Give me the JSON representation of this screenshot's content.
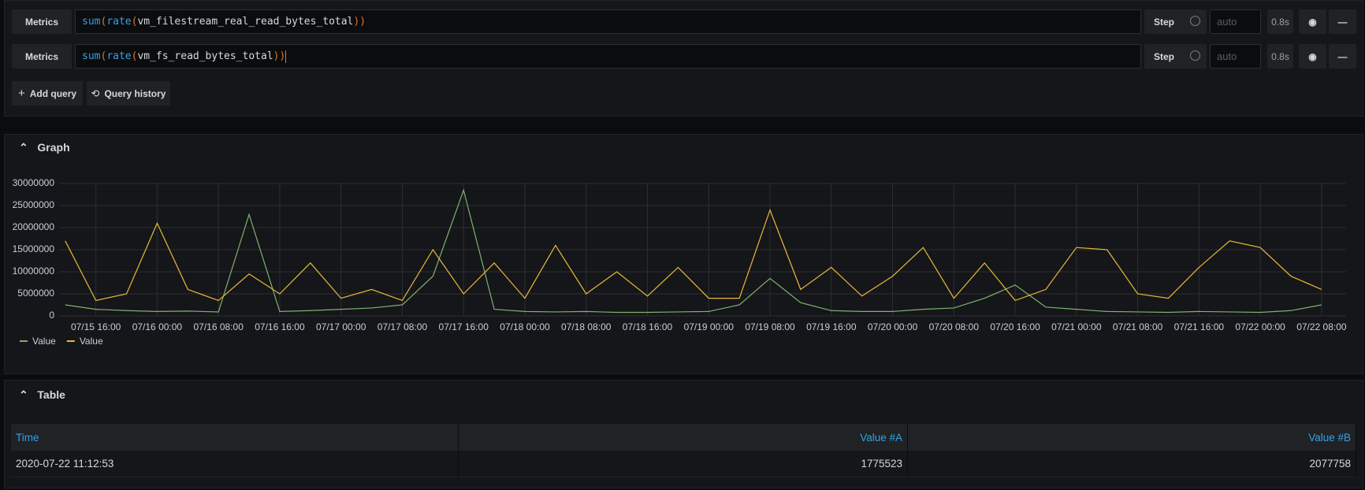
{
  "queries": [
    {
      "datasource": "Metrics",
      "expr": "sum(rate(vm_filestream_real_read_bytes_total))",
      "step": "Step",
      "step_placeholder": "auto",
      "duration": "0.8s"
    },
    {
      "datasource": "Metrics",
      "expr": "sum(rate(vm_fs_read_bytes_total))",
      "step": "Step",
      "step_placeholder": "auto",
      "duration": "0.8s"
    }
  ],
  "buttons": {
    "add_query": "Add query",
    "query_history": "Query history"
  },
  "chart_data": {
    "type": "line",
    "title": "Graph",
    "x": [
      "07/15 12:00",
      "07/15 16:00",
      "07/15 20:00",
      "07/16 00:00",
      "07/16 04:00",
      "07/16 08:00",
      "07/16 12:00",
      "07/16 16:00",
      "07/16 20:00",
      "07/17 00:00",
      "07/17 04:00",
      "07/17 08:00",
      "07/17 12:00",
      "07/17 16:00",
      "07/17 20:00",
      "07/18 00:00",
      "07/18 04:00",
      "07/18 08:00",
      "07/18 12:00",
      "07/18 16:00",
      "07/18 20:00",
      "07/19 00:00",
      "07/19 04:00",
      "07/19 08:00",
      "07/19 12:00",
      "07/19 16:00",
      "07/19 20:00",
      "07/20 00:00",
      "07/20 04:00",
      "07/20 08:00",
      "07/20 12:00",
      "07/20 16:00",
      "07/20 20:00",
      "07/21 00:00",
      "07/21 04:00",
      "07/21 08:00",
      "07/21 12:00",
      "07/21 16:00",
      "07/21 20:00",
      "07/22 00:00",
      "07/22 04:00",
      "07/22 08:00"
    ],
    "series": [
      {
        "name": "Value",
        "color": "#7eb26d",
        "values": [
          2500000,
          1500000,
          1200000,
          1000000,
          1100000,
          900000,
          23000000,
          1000000,
          1200000,
          1500000,
          1800000,
          2500000,
          9000000,
          28500000,
          1500000,
          1000000,
          900000,
          1000000,
          800000,
          800000,
          900000,
          1000000,
          2500000,
          8500000,
          3000000,
          1200000,
          1000000,
          1000000,
          1500000,
          1800000,
          4000000,
          7000000,
          2000000,
          1500000,
          1000000,
          900000,
          800000,
          1000000,
          900000,
          800000,
          1200000,
          2500000
        ]
      },
      {
        "name": "Value",
        "color": "#eab839",
        "values": [
          17000000,
          3500000,
          5000000,
          21000000,
          6000000,
          3500000,
          9500000,
          5000000,
          12000000,
          4000000,
          6000000,
          3500000,
          15000000,
          5000000,
          12000000,
          4000000,
          16000000,
          5000000,
          10000000,
          4500000,
          11000000,
          4000000,
          4000000,
          24000000,
          6000000,
          11000000,
          4500000,
          9000000,
          15500000,
          4000000,
          12000000,
          3500000,
          6000000,
          15500000,
          15000000,
          5000000,
          4000000,
          11000000,
          17000000,
          15500000,
          9000000,
          6000000
        ]
      }
    ],
    "xlim": [
      "07/15 11:12",
      "07/22 11:12"
    ],
    "xticks": [
      "07/15 16:00",
      "07/16 00:00",
      "07/16 08:00",
      "07/16 16:00",
      "07/17 00:00",
      "07/17 08:00",
      "07/17 16:00",
      "07/18 00:00",
      "07/18 08:00",
      "07/18 16:00",
      "07/19 00:00",
      "07/19 08:00",
      "07/19 16:00",
      "07/20 00:00",
      "07/20 08:00",
      "07/20 16:00",
      "07/21 00:00",
      "07/21 08:00",
      "07/21 16:00",
      "07/22 00:00",
      "07/22 08:00"
    ],
    "ylim": [
      0,
      30000000
    ],
    "yticks": [
      0,
      5000000,
      10000000,
      15000000,
      20000000,
      25000000,
      30000000
    ],
    "grid": true,
    "legend": "bottom-left"
  },
  "table": {
    "title": "Table",
    "columns": [
      "Time",
      "Value #A",
      "Value #B"
    ],
    "rows": [
      [
        "2020-07-22 11:12:53",
        1775523,
        2077758
      ]
    ]
  }
}
